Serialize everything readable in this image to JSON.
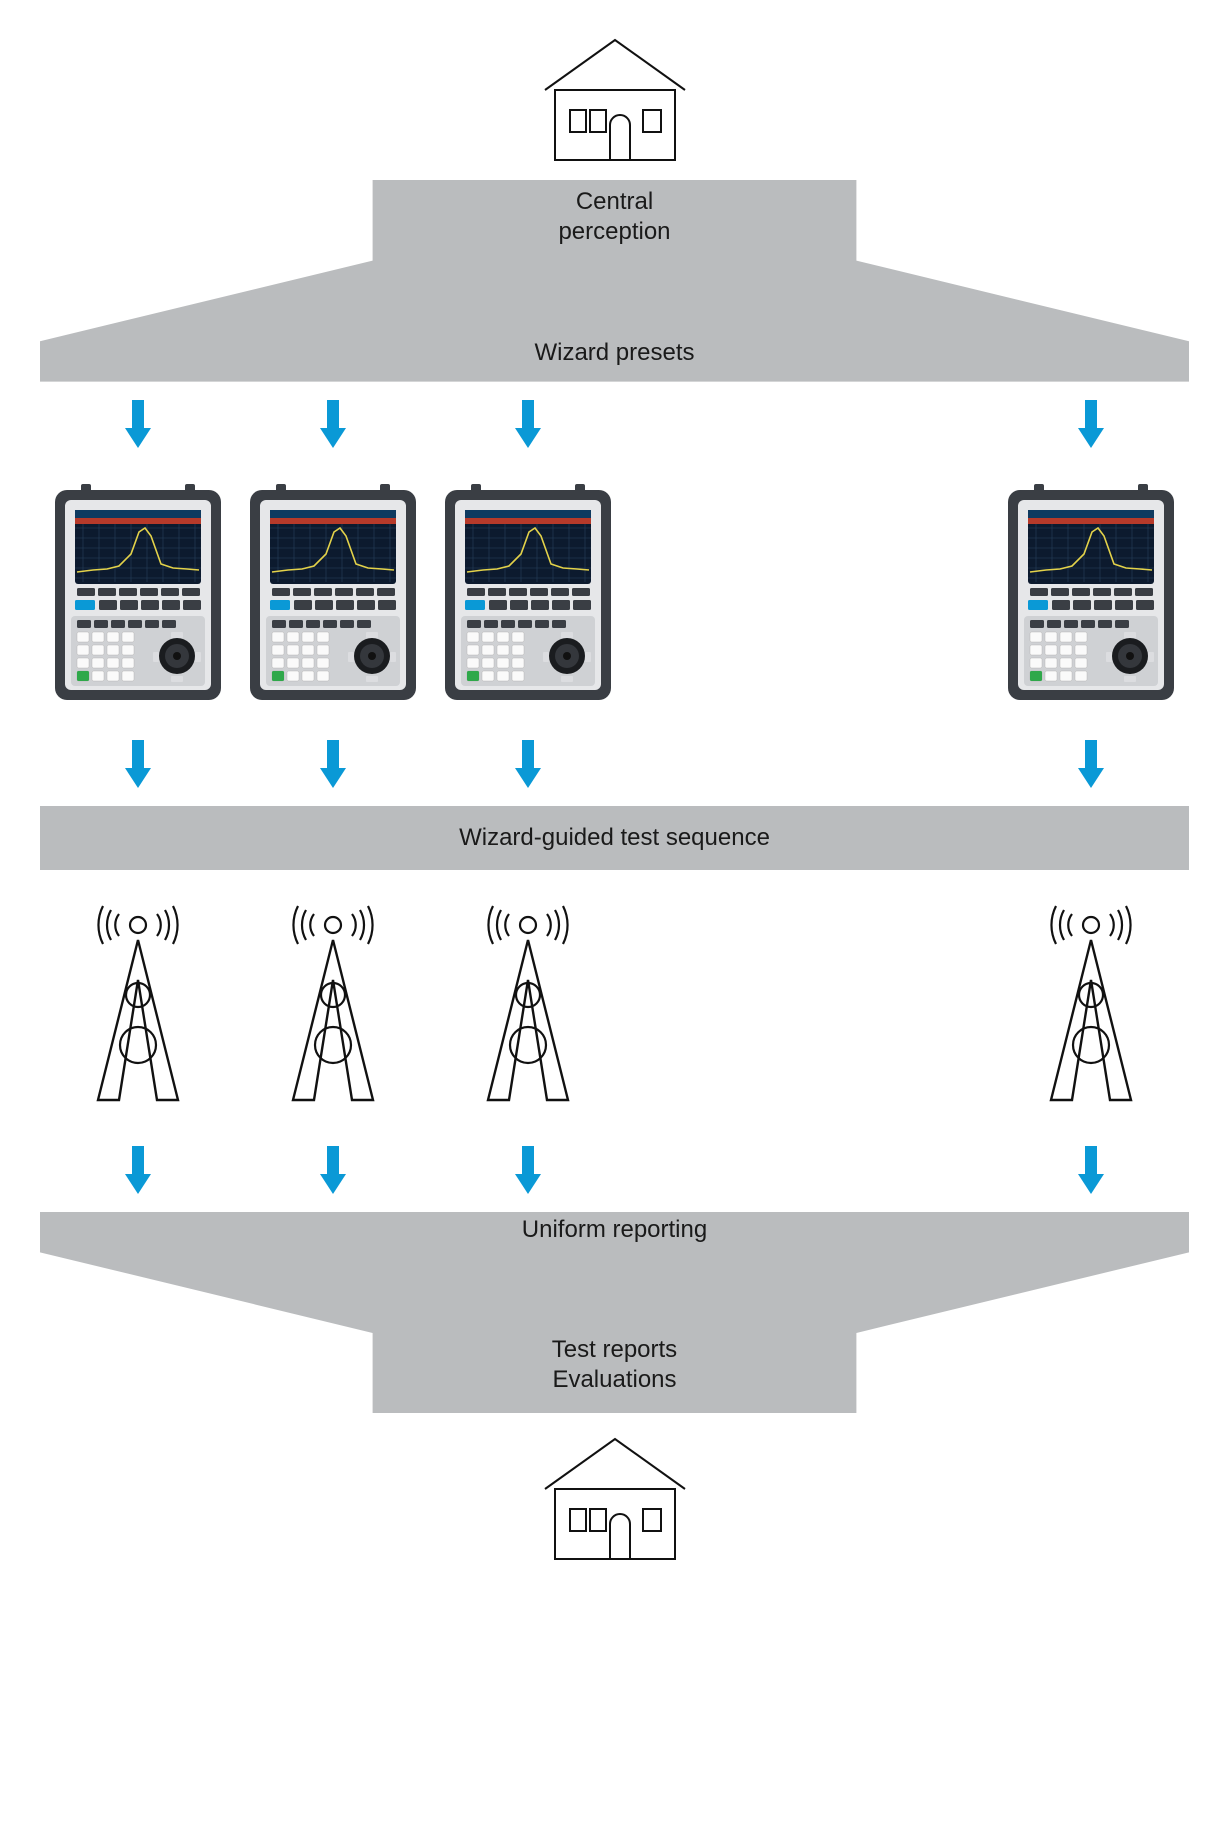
{
  "type": "flowchart",
  "colors": {
    "fill_grey": "#babcbe",
    "arrow_blue": "#0a99d6",
    "stroke_black": "#111111",
    "instrument_body": "#3a3e44",
    "instrument_face": "#e6e7e9",
    "instrument_screen": "#0c1a2e",
    "instrument_trace": "#e3d24a",
    "instrument_blue_btn": "#0a99d6",
    "instrument_green_btn": "#2fa84a",
    "background": "#ffffff"
  },
  "labels": {
    "central_perception": "Central\nperception",
    "wizard_presets": "Wizard presets",
    "wizard_guided": "Wizard-guided test sequence",
    "uniform_reporting": "Uniform reporting",
    "test_reports": "Test reports\nEvaluations"
  },
  "layout": {
    "columns": 4,
    "gap_after_col3": true
  },
  "fontsize": {
    "label": 24
  }
}
